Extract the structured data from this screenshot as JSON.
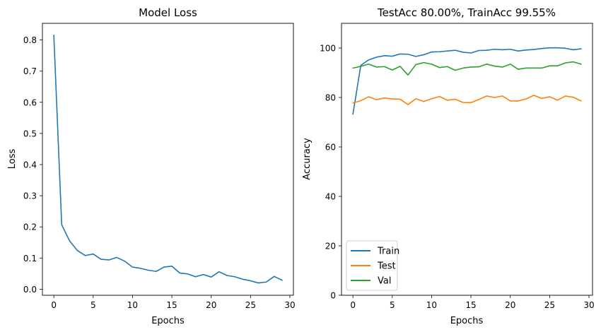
{
  "chart_data": [
    {
      "type": "line",
      "title": "Model Loss",
      "xlabel": "Epochs",
      "ylabel": "Loss",
      "xlim": [
        -1.45,
        30.45
      ],
      "ylim": [
        -0.0195,
        0.8535
      ],
      "xticks": [
        0,
        5,
        10,
        15,
        20,
        25,
        30
      ],
      "yticks": [
        0.0,
        0.1,
        0.2,
        0.3,
        0.4,
        0.5,
        0.6,
        0.7,
        0.8
      ],
      "ytick_labels": [
        "0.0",
        "0.1",
        "0.2",
        "0.3",
        "0.4",
        "0.5",
        "0.6",
        "0.7",
        "0.8"
      ],
      "grid": false,
      "series": [
        {
          "color": "#1f77b4",
          "x": [
            0,
            1,
            2,
            3,
            4,
            5,
            6,
            7,
            8,
            9,
            10,
            11,
            12,
            13,
            14,
            15,
            16,
            17,
            18,
            19,
            20,
            21,
            22,
            23,
            24,
            25,
            26,
            27,
            28,
            29
          ],
          "values": [
            0.815,
            0.207,
            0.155,
            0.124,
            0.108,
            0.113,
            0.096,
            0.094,
            0.102,
            0.09,
            0.071,
            0.067,
            0.061,
            0.057,
            0.071,
            0.074,
            0.052,
            0.049,
            0.04,
            0.047,
            0.039,
            0.056,
            0.044,
            0.04,
            0.032,
            0.027,
            0.02,
            0.023,
            0.041,
            0.029
          ]
        }
      ]
    },
    {
      "type": "line",
      "title": "TestAcc 80.00%, TrainAcc 99.55%",
      "xlabel": "Epochs",
      "ylabel": "Accuracy",
      "xlim": [
        -1.45,
        30.45
      ],
      "ylim": [
        0,
        110
      ],
      "xticks": [
        0,
        5,
        10,
        15,
        20,
        25,
        30
      ],
      "yticks": [
        0,
        20,
        40,
        60,
        80,
        100
      ],
      "ytick_labels": [
        "0",
        "20",
        "40",
        "60",
        "80",
        "100"
      ],
      "grid": false,
      "legend": "lower-left",
      "series": [
        {
          "name": "Train",
          "color": "#1f77b4",
          "x": [
            0,
            1,
            2,
            3,
            4,
            5,
            6,
            7,
            8,
            9,
            10,
            11,
            12,
            13,
            14,
            15,
            16,
            17,
            18,
            19,
            20,
            21,
            22,
            23,
            24,
            25,
            26,
            27,
            28,
            29
          ],
          "values": [
            73.2,
            93.0,
            95.2,
            96.3,
            96.9,
            96.7,
            97.6,
            97.5,
            96.6,
            97.3,
            98.4,
            98.5,
            98.8,
            99.1,
            98.3,
            98.0,
            99.0,
            99.1,
            99.5,
            99.3,
            99.5,
            98.8,
            99.2,
            99.4,
            99.8,
            100.1,
            100.1,
            99.9,
            99.3,
            99.7
          ]
        },
        {
          "name": "Test",
          "color": "#ff7f0e",
          "x": [
            0,
            1,
            2,
            3,
            4,
            5,
            6,
            7,
            8,
            9,
            10,
            11,
            12,
            13,
            14,
            15,
            16,
            17,
            18,
            19,
            20,
            21,
            22,
            23,
            24,
            25,
            26,
            27,
            28,
            29
          ],
          "values": [
            77.8,
            78.7,
            80.3,
            79.1,
            79.8,
            79.4,
            79.3,
            77.1,
            79.5,
            78.4,
            79.5,
            80.4,
            78.9,
            79.3,
            78.0,
            77.9,
            79.2,
            80.6,
            80.0,
            80.6,
            78.6,
            78.6,
            79.4,
            80.9,
            79.6,
            80.3,
            78.9,
            80.6,
            80.1,
            78.6
          ]
        },
        {
          "name": "Val",
          "color": "#2ca02c",
          "x": [
            0,
            1,
            2,
            3,
            4,
            5,
            6,
            7,
            8,
            9,
            10,
            11,
            12,
            13,
            14,
            15,
            16,
            17,
            18,
            19,
            20,
            21,
            22,
            23,
            24,
            25,
            26,
            27,
            28,
            29
          ],
          "values": [
            91.9,
            92.6,
            93.5,
            92.3,
            92.5,
            91.1,
            92.6,
            89.1,
            93.3,
            94.1,
            93.5,
            92.1,
            92.5,
            91.0,
            91.9,
            92.3,
            92.4,
            93.5,
            92.7,
            92.3,
            93.5,
            91.4,
            91.9,
            91.9,
            91.9,
            92.8,
            92.8,
            94.0,
            94.4,
            93.5
          ]
        }
      ]
    }
  ]
}
